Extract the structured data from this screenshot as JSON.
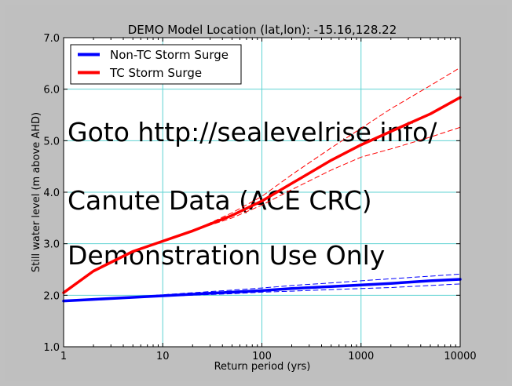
{
  "colors": {
    "background": "#bfbfbf",
    "plot_background": "#ffffff",
    "grid": "#5fd3d3",
    "non_tc": "#0000ff",
    "tc": "#ff0000",
    "watermark": "#bdbdbd"
  },
  "watermark": {
    "lines": [
      "Goto http://sealevelrise.info/",
      "Canute Data (ACE CRC)",
      "Demonstration Use Only"
    ]
  },
  "chart_data": {
    "type": "line",
    "title": "DEMO Model Location (lat,lon): -15.16,128.22",
    "xlabel": "Return period (yrs)",
    "ylabel": "Still water level (m above AHD)",
    "xscale": "log",
    "xlim": [
      1,
      10000
    ],
    "ylim": [
      1.0,
      7.0
    ],
    "xticks": [
      1,
      10,
      100,
      1000,
      10000
    ],
    "xtick_labels": [
      "1",
      "10",
      "100",
      "1000",
      "10000"
    ],
    "yticks": [
      1.0,
      2.0,
      3.0,
      4.0,
      5.0,
      6.0,
      7.0
    ],
    "ytick_labels": [
      "1.0",
      "2.0",
      "3.0",
      "4.0",
      "5.0",
      "6.0",
      "7.0"
    ],
    "grid": true,
    "legend_position": "top-left",
    "series": [
      {
        "name": "Non-TC Storm Surge",
        "color": "#0000ff",
        "style": "solid",
        "x": [
          1,
          2,
          5,
          10,
          20,
          50,
          100,
          200,
          500,
          1000,
          2000,
          5000,
          10000
        ],
        "y": [
          1.89,
          1.92,
          1.96,
          1.99,
          2.02,
          2.06,
          2.09,
          2.13,
          2.17,
          2.2,
          2.23,
          2.28,
          2.31
        ]
      },
      {
        "name": "Non-TC upper bound",
        "color": "#0000ff",
        "style": "dashed",
        "x": [
          5,
          10,
          20,
          50,
          100,
          200,
          500,
          1000,
          2000,
          5000,
          10000
        ],
        "y": [
          1.97,
          2.01,
          2.05,
          2.1,
          2.14,
          2.19,
          2.24,
          2.28,
          2.32,
          2.37,
          2.41
        ]
      },
      {
        "name": "Non-TC lower bound",
        "color": "#0000ff",
        "style": "dashed",
        "x": [
          5,
          10,
          20,
          50,
          100,
          200,
          500,
          1000,
          2000,
          5000,
          10000
        ],
        "y": [
          1.96,
          1.98,
          2.0,
          2.03,
          2.06,
          2.08,
          2.11,
          2.13,
          2.15,
          2.19,
          2.22
        ]
      },
      {
        "name": "TC Storm Surge",
        "color": "#ff0000",
        "style": "solid",
        "x": [
          1,
          2,
          5,
          10,
          20,
          50,
          100,
          200,
          500,
          1000,
          2000,
          5000,
          10000
        ],
        "y": [
          2.05,
          2.47,
          2.85,
          3.05,
          3.25,
          3.55,
          3.83,
          4.17,
          4.62,
          4.92,
          5.18,
          5.52,
          5.84
        ]
      },
      {
        "name": "TC upper bound",
        "color": "#ff0000",
        "style": "dashed",
        "x": [
          20,
          50,
          100,
          200,
          500,
          1000,
          2000,
          5000,
          10000
        ],
        "y": [
          3.25,
          3.6,
          3.92,
          4.34,
          4.86,
          5.24,
          5.62,
          6.07,
          6.42
        ]
      },
      {
        "name": "TC lower bound",
        "color": "#ff0000",
        "style": "dashed",
        "x": [
          20,
          50,
          100,
          200,
          500,
          1000,
          2000,
          5000,
          10000
        ],
        "y": [
          3.25,
          3.5,
          3.75,
          4.05,
          4.43,
          4.68,
          4.84,
          5.07,
          5.26
        ]
      }
    ],
    "legend": [
      "Non-TC Storm Surge",
      "TC Storm Surge"
    ]
  }
}
